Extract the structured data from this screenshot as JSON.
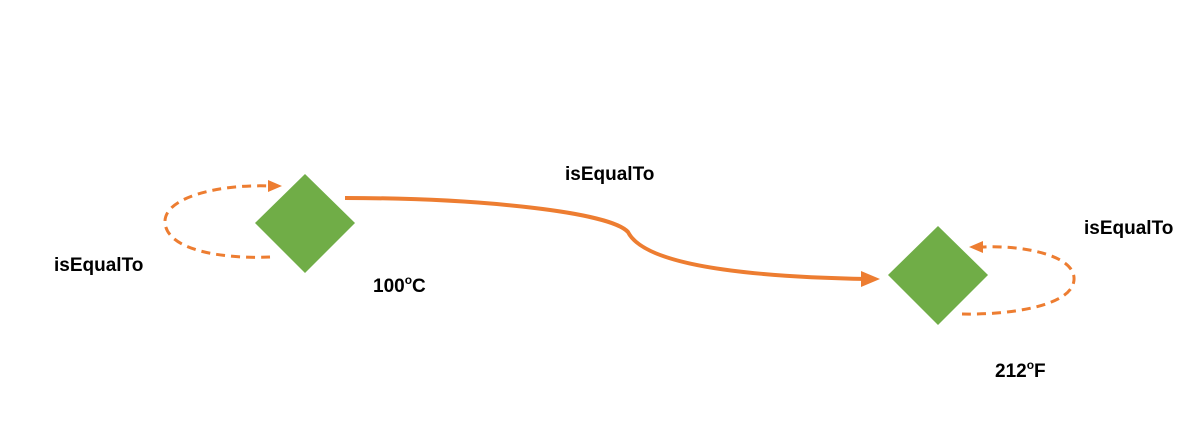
{
  "colors": {
    "node_fill": "#70ad47",
    "edge": "#ed7d31",
    "text": "#000000"
  },
  "edges": {
    "main_label": "isEqualTo",
    "left_self_loop_label": "isEqualTo",
    "right_self_loop_label": "isEqualTo"
  },
  "nodes": {
    "left": {
      "value": "100",
      "degree": "o",
      "unit": "C"
    },
    "right": {
      "value": "212",
      "degree": "o",
      "unit": "F"
    }
  }
}
